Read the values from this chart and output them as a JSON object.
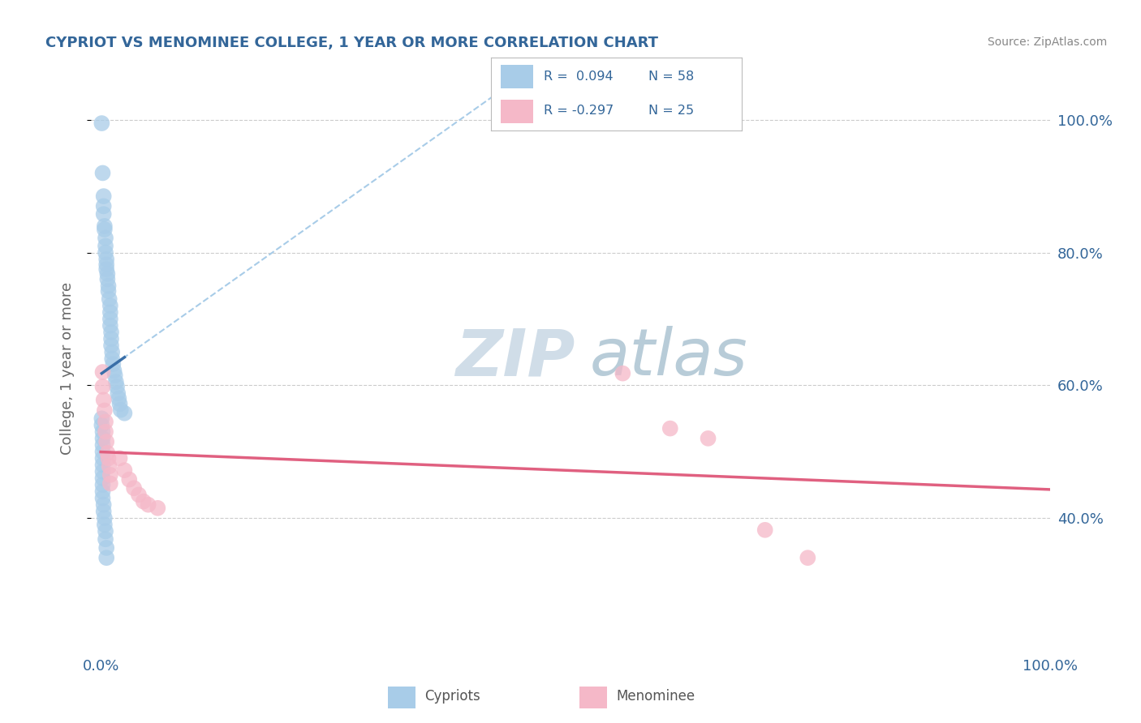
{
  "title": "CYPRIOT VS MENOMINEE COLLEGE, 1 YEAR OR MORE CORRELATION CHART",
  "source": "Source: ZipAtlas.com",
  "ylabel": "College, 1 year or more",
  "legend_label1": "Cypriots",
  "legend_label2": "Menominee",
  "R_cypriot": 0.094,
  "N_cypriot": 58,
  "R_menominee": -0.297,
  "N_menominee": 25,
  "blue_color": "#a8cce8",
  "pink_color": "#f5b8c8",
  "blue_line_color": "#3a6fa8",
  "pink_line_color": "#e06080",
  "dashed_line_color": "#a8cce8",
  "watermark_zip_color": "#d0dde8",
  "watermark_atlas_color": "#b8ccd8",
  "title_color": "#336699",
  "legend_r_color": "#336699",
  "legend_n_color": "#336699",
  "axis_tick_color": "#336699",
  "ylabel_color": "#666666",
  "source_color": "#888888",
  "grid_color": "#cccccc",
  "blue_scatter": [
    [
      0.001,
      0.995
    ],
    [
      0.002,
      0.92
    ],
    [
      0.003,
      0.885
    ],
    [
      0.003,
      0.87
    ],
    [
      0.003,
      0.858
    ],
    [
      0.004,
      0.84
    ],
    [
      0.004,
      0.835
    ],
    [
      0.005,
      0.822
    ],
    [
      0.005,
      0.81
    ],
    [
      0.005,
      0.8
    ],
    [
      0.006,
      0.79
    ],
    [
      0.006,
      0.782
    ],
    [
      0.006,
      0.775
    ],
    [
      0.007,
      0.768
    ],
    [
      0.007,
      0.76
    ],
    [
      0.008,
      0.75
    ],
    [
      0.008,
      0.742
    ],
    [
      0.009,
      0.73
    ],
    [
      0.01,
      0.72
    ],
    [
      0.01,
      0.71
    ],
    [
      0.01,
      0.7
    ],
    [
      0.01,
      0.69
    ],
    [
      0.011,
      0.68
    ],
    [
      0.011,
      0.67
    ],
    [
      0.011,
      0.66
    ],
    [
      0.012,
      0.65
    ],
    [
      0.012,
      0.64
    ],
    [
      0.013,
      0.632
    ],
    [
      0.014,
      0.622
    ],
    [
      0.015,
      0.615
    ],
    [
      0.016,
      0.605
    ],
    [
      0.017,
      0.598
    ],
    [
      0.018,
      0.588
    ],
    [
      0.019,
      0.58
    ],
    [
      0.02,
      0.572
    ],
    [
      0.021,
      0.563
    ],
    [
      0.025,
      0.558
    ],
    [
      0.001,
      0.55
    ],
    [
      0.001,
      0.54
    ],
    [
      0.002,
      0.53
    ],
    [
      0.002,
      0.52
    ],
    [
      0.002,
      0.51
    ],
    [
      0.002,
      0.5
    ],
    [
      0.002,
      0.49
    ],
    [
      0.002,
      0.48
    ],
    [
      0.002,
      0.47
    ],
    [
      0.002,
      0.46
    ],
    [
      0.002,
      0.45
    ],
    [
      0.002,
      0.44
    ],
    [
      0.002,
      0.43
    ],
    [
      0.003,
      0.42
    ],
    [
      0.003,
      0.41
    ],
    [
      0.004,
      0.4
    ],
    [
      0.004,
      0.39
    ],
    [
      0.005,
      0.38
    ],
    [
      0.005,
      0.368
    ],
    [
      0.006,
      0.355
    ],
    [
      0.006,
      0.34
    ]
  ],
  "pink_scatter": [
    [
      0.002,
      0.62
    ],
    [
      0.002,
      0.598
    ],
    [
      0.003,
      0.578
    ],
    [
      0.004,
      0.562
    ],
    [
      0.005,
      0.545
    ],
    [
      0.005,
      0.53
    ],
    [
      0.006,
      0.515
    ],
    [
      0.007,
      0.498
    ],
    [
      0.008,
      0.49
    ],
    [
      0.009,
      0.478
    ],
    [
      0.01,
      0.465
    ],
    [
      0.01,
      0.452
    ],
    [
      0.02,
      0.49
    ],
    [
      0.025,
      0.472
    ],
    [
      0.03,
      0.458
    ],
    [
      0.035,
      0.445
    ],
    [
      0.04,
      0.435
    ],
    [
      0.045,
      0.425
    ],
    [
      0.05,
      0.42
    ],
    [
      0.06,
      0.415
    ],
    [
      0.55,
      0.618
    ],
    [
      0.6,
      0.535
    ],
    [
      0.64,
      0.52
    ],
    [
      0.7,
      0.382
    ],
    [
      0.745,
      0.34
    ]
  ],
  "xlim": [
    -0.01,
    1.0
  ],
  "ylim": [
    0.2,
    1.05
  ],
  "xtick_positions": [
    0.0,
    1.0
  ],
  "xticklabels": [
    "0.0%",
    "100.0%"
  ],
  "ytick_positions": [
    0.4,
    0.6,
    0.8,
    1.0
  ],
  "yticklabels_right": [
    "40.0%",
    "60.0%",
    "80.0%",
    "100.0%"
  ]
}
